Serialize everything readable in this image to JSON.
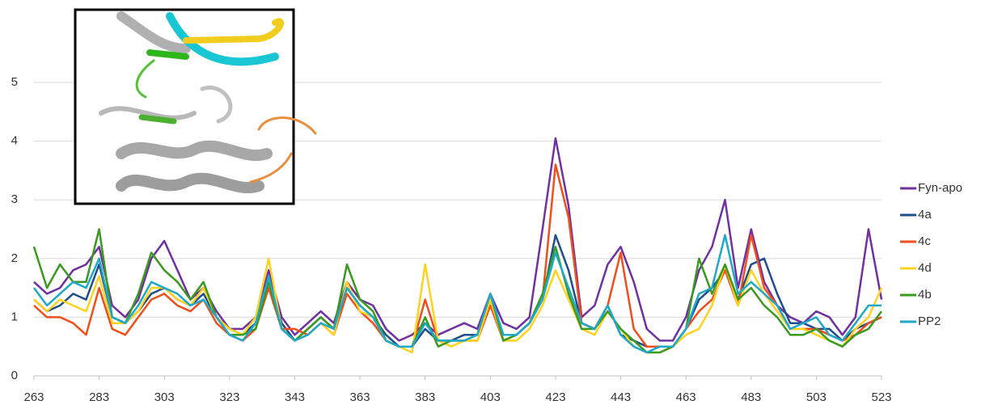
{
  "chart_data": {
    "type": "line",
    "x": [
      263,
      267,
      271,
      275,
      279,
      283,
      287,
      291,
      295,
      299,
      303,
      307,
      311,
      315,
      319,
      323,
      327,
      331,
      335,
      339,
      343,
      347,
      351,
      355,
      359,
      363,
      367,
      371,
      375,
      379,
      383,
      387,
      391,
      395,
      399,
      403,
      407,
      411,
      415,
      419,
      423,
      427,
      431,
      435,
      439,
      443,
      447,
      451,
      455,
      459,
      463,
      467,
      471,
      475,
      479,
      483,
      487,
      491,
      495,
      499,
      503,
      507,
      511,
      515,
      519,
      523
    ],
    "series": [
      {
        "name": "Fyn-apo",
        "color": "#7030a0",
        "values": [
          1.6,
          1.4,
          1.5,
          1.8,
          1.9,
          2.2,
          1.2,
          1.0,
          1.3,
          2.0,
          2.3,
          1.8,
          1.3,
          1.5,
          1.1,
          0.8,
          0.8,
          1.0,
          1.8,
          1.0,
          0.7,
          0.9,
          1.1,
          0.9,
          1.6,
          1.3,
          1.2,
          0.8,
          0.6,
          0.7,
          0.9,
          0.7,
          0.8,
          0.9,
          0.8,
          1.4,
          0.9,
          0.8,
          1.0,
          2.5,
          4.05,
          2.9,
          1.0,
          1.2,
          1.9,
          2.2,
          1.6,
          0.8,
          0.6,
          0.6,
          1.0,
          1.8,
          2.2,
          3.0,
          1.5,
          2.5,
          1.6,
          1.2,
          1.0,
          0.9,
          1.1,
          1.0,
          0.7,
          1.0,
          2.5,
          1.3
        ]
      },
      {
        "name": "4a",
        "color": "#1f4e8c",
        "values": [
          1.3,
          1.1,
          1.2,
          1.4,
          1.3,
          1.9,
          1.0,
          0.9,
          1.1,
          1.4,
          1.5,
          1.3,
          1.2,
          1.4,
          1.0,
          0.8,
          0.7,
          0.9,
          1.7,
          0.9,
          0.6,
          0.8,
          1.0,
          0.8,
          1.5,
          1.2,
          1.0,
          0.7,
          0.5,
          0.5,
          0.8,
          0.6,
          0.6,
          0.7,
          0.7,
          1.3,
          0.7,
          0.7,
          0.9,
          1.3,
          2.4,
          1.8,
          0.9,
          0.8,
          1.2,
          0.7,
          0.6,
          0.5,
          0.5,
          0.5,
          0.8,
          1.3,
          1.5,
          1.8,
          1.3,
          1.9,
          2.0,
          1.4,
          0.9,
          0.9,
          0.8,
          0.8,
          0.6,
          0.8,
          0.9,
          1.0
        ]
      },
      {
        "name": "4c",
        "color": "#f04e1a",
        "values": [
          1.2,
          1.0,
          1.0,
          0.9,
          0.7,
          1.5,
          0.8,
          0.7,
          1.0,
          1.3,
          1.4,
          1.2,
          1.1,
          1.3,
          0.9,
          0.7,
          0.6,
          0.8,
          1.5,
          0.8,
          0.8,
          0.7,
          0.9,
          0.7,
          1.4,
          1.1,
          0.9,
          0.6,
          0.5,
          0.5,
          1.3,
          0.6,
          0.6,
          0.6,
          0.6,
          1.2,
          0.6,
          0.7,
          0.9,
          1.3,
          3.6,
          2.7,
          0.9,
          0.8,
          1.2,
          2.1,
          0.8,
          0.5,
          0.5,
          0.5,
          0.8,
          1.1,
          1.3,
          1.8,
          1.2,
          2.4,
          1.5,
          1.2,
          0.8,
          0.8,
          0.8,
          0.7,
          0.6,
          0.7,
          0.9,
          1.0
        ]
      },
      {
        "name": "4d",
        "color": "#ffd21f",
        "values": [
          1.3,
          1.1,
          1.3,
          1.2,
          1.1,
          1.7,
          0.9,
          0.9,
          1.1,
          1.5,
          1.5,
          1.3,
          1.2,
          1.5,
          1.0,
          0.8,
          0.7,
          1.0,
          2.0,
          0.8,
          0.6,
          0.7,
          0.9,
          0.7,
          1.6,
          1.1,
          1.0,
          0.6,
          0.5,
          0.4,
          1.9,
          0.6,
          0.5,
          0.6,
          0.6,
          1.3,
          0.6,
          0.6,
          0.8,
          1.2,
          1.8,
          1.3,
          0.8,
          0.7,
          1.1,
          0.8,
          0.5,
          0.4,
          0.4,
          0.5,
          0.7,
          0.8,
          1.2,
          1.9,
          1.2,
          1.8,
          1.4,
          1.1,
          0.8,
          0.8,
          0.7,
          0.6,
          0.5,
          0.8,
          1.0,
          1.5
        ]
      },
      {
        "name": "4b",
        "color": "#3a9a1e",
        "values": [
          2.2,
          1.5,
          1.9,
          1.6,
          1.6,
          2.5,
          1.0,
          0.9,
          1.4,
          2.1,
          1.8,
          1.6,
          1.3,
          1.6,
          1.0,
          0.7,
          0.7,
          0.8,
          1.6,
          0.8,
          0.6,
          0.8,
          1.0,
          0.8,
          1.9,
          1.3,
          1.1,
          0.6,
          0.5,
          0.5,
          1.0,
          0.5,
          0.6,
          0.6,
          0.7,
          1.4,
          0.6,
          0.7,
          0.9,
          1.4,
          2.2,
          1.4,
          0.8,
          0.8,
          1.1,
          0.8,
          0.6,
          0.4,
          0.4,
          0.5,
          0.8,
          2.0,
          1.4,
          1.9,
          1.3,
          1.5,
          1.2,
          1.0,
          0.7,
          0.7,
          0.8,
          0.6,
          0.5,
          0.7,
          0.8,
          1.1
        ]
      },
      {
        "name": "PP2",
        "color": "#1fa9c9",
        "values": [
          1.5,
          1.2,
          1.4,
          1.6,
          1.5,
          2.0,
          1.0,
          0.9,
          1.2,
          1.6,
          1.5,
          1.4,
          1.2,
          1.3,
          1.0,
          0.7,
          0.6,
          0.9,
          1.7,
          0.8,
          0.6,
          0.7,
          0.9,
          0.8,
          1.5,
          1.2,
          1.0,
          0.6,
          0.5,
          0.5,
          0.9,
          0.6,
          0.6,
          0.6,
          0.7,
          1.4,
          0.7,
          0.7,
          0.9,
          1.3,
          2.1,
          1.5,
          0.9,
          0.8,
          1.2,
          0.7,
          0.5,
          0.4,
          0.5,
          0.5,
          0.8,
          1.4,
          1.5,
          2.4,
          1.4,
          1.6,
          1.4,
          1.2,
          0.8,
          0.9,
          1.0,
          0.7,
          0.6,
          0.9,
          1.2,
          1.2
        ]
      }
    ],
    "xlim": [
      263,
      523
    ],
    "xticks": [
      263,
      283,
      303,
      323,
      343,
      363,
      383,
      403,
      423,
      443,
      463,
      483,
      503,
      523
    ],
    "ylim": [
      0,
      5
    ],
    "yticks": [
      0,
      1,
      2,
      3,
      4,
      5
    ],
    "grid": true,
    "legend": "right"
  }
}
